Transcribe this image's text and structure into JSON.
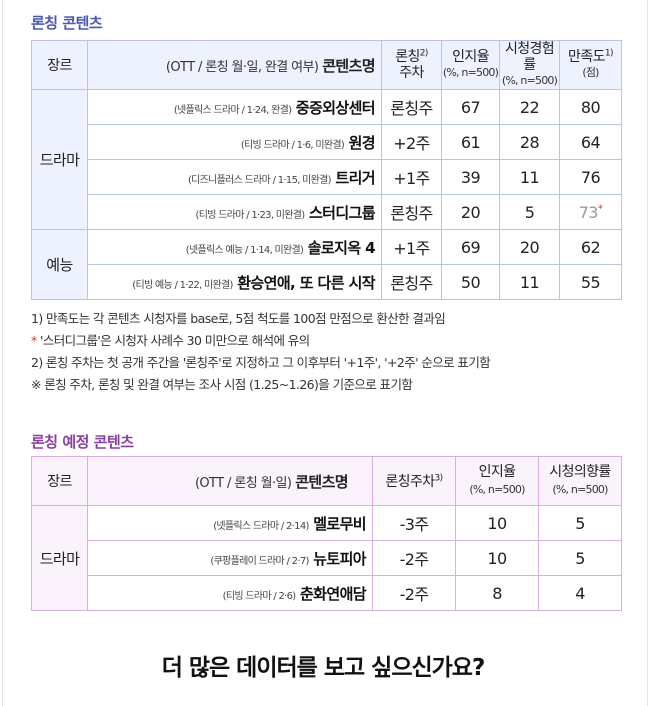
{
  "section1": {
    "title": "론칭 콘텐츠",
    "header": {
      "genre": "장르",
      "title_desc": "(OTT / 론칭 월·일, 완결 여부)",
      "title_main": "콘텐츠명",
      "launch_line1": "론칭",
      "launch_sup": "2)",
      "launch_line2": "주차",
      "awareness": "인지율",
      "awareness_sub": "(%, n=500)",
      "experience": "시청경험률",
      "experience_sub": "(%, n=500)",
      "satisfaction": "만족도",
      "satisfaction_sup": "1)",
      "satisfaction_sub": "(점)"
    },
    "groups": [
      {
        "genre": "드라마",
        "rows": [
          {
            "meta": "(넷플릭스 드라마 / 1·24, 완결)",
            "name": "중증외상센터",
            "week": "론칭주",
            "awareness": "67",
            "experience": "22",
            "satisfaction": "80"
          },
          {
            "meta": "(티빙 드라마 / 1·6, 미완결)",
            "name": "원경",
            "week": "+2주",
            "awareness": "61",
            "experience": "28",
            "satisfaction": "64"
          },
          {
            "meta": "(디즈니플러스 드라마 / 1·15, 미완결)",
            "name": "트리거",
            "week": "+1주",
            "awareness": "39",
            "experience": "11",
            "satisfaction": "76"
          },
          {
            "meta": "(티빙 드라마 / 1·23, 미완결)",
            "name": "스터디그룹",
            "week": "론칭주",
            "awareness": "20",
            "experience": "5",
            "satisfaction": "73",
            "satisfaction_mark": "*"
          }
        ]
      },
      {
        "genre": "예능",
        "rows": [
          {
            "meta": "(넷플릭스 예능 / 1·14, 미완결)",
            "name": "솔로지옥 4",
            "week": "+1주",
            "awareness": "69",
            "experience": "20",
            "satisfaction": "62"
          },
          {
            "meta": "(티빙 예능 / 1·22, 미완결)",
            "name": "환승연애, 또 다른 시작",
            "week": "론칭주",
            "awareness": "50",
            "experience": "11",
            "satisfaction": "55"
          }
        ]
      }
    ],
    "notes": [
      {
        "mark": "",
        "text": "1) 만족도는 각 콘텐츠 시청자를 base로, 5점 척도를 100점 만점으로 환산한 결과임"
      },
      {
        "mark": "*",
        "text": "'스터디그룹'은 시청자 사례수 30 미만으로 해석에 유의"
      },
      {
        "mark": "",
        "text": "2) 론칭 주차는 첫 공개 주간을 '론칭주'로 지정하고 그 이후부터 '+1주', '+2주' 순으로 표기함"
      },
      {
        "mark": "※",
        "text": "론칭 주차, 론칭 및 완결 여부는 조사 시점 (1.25~1.26)을 기준으로 표기함"
      }
    ]
  },
  "section2": {
    "title": "론칭 예정 콘텐츠",
    "header": {
      "genre": "장르",
      "title_desc": "(OTT / 론칭 월·일)",
      "title_main": "콘텐츠명",
      "launch": "론칭주차",
      "launch_sup": "3)",
      "awareness": "인지율",
      "awareness_sub": "(%, n=500)",
      "intent": "시청의향률",
      "intent_sub": "(%, n=500)"
    },
    "groups": [
      {
        "genre": "드라마",
        "rows": [
          {
            "meta": "(넷플릭스 드라마 / 2·14)",
            "name": "멜로무비",
            "week": "-3주",
            "awareness": "10",
            "intent": "5"
          },
          {
            "meta": "(쿠팡플레이 드라마 / 2·7)",
            "name": "뉴토피아",
            "week": "-2주",
            "awareness": "10",
            "intent": "5"
          },
          {
            "meta": "(티빙 드라마 / 2·6)",
            "name": "춘화연애담",
            "week": "-2주",
            "awareness": "8",
            "intent": "4"
          }
        ]
      }
    ]
  },
  "cta": "더 많은 데이터를 보고 싶으신가요?"
}
